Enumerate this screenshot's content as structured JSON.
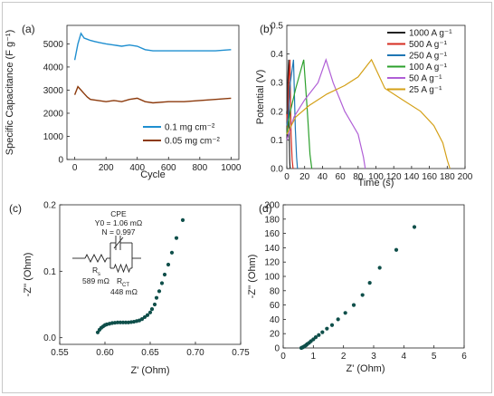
{
  "chart_data": [
    {
      "panel": "(a)",
      "type": "line",
      "xlabel": "Cycle",
      "ylabel": "Specific Capacitance (F g⁻¹)",
      "xlim": [
        -50,
        1050
      ],
      "ylim": [
        0,
        5800
      ],
      "x_ticks": [
        "0",
        "200",
        "400",
        "600",
        "800",
        "1000"
      ],
      "y_ticks": [
        "0",
        "1000",
        "2000",
        "3000",
        "4000",
        "5000"
      ],
      "legend_position": "bottom-right",
      "series": [
        {
          "name": "0.1 mg cm⁻²",
          "color": "#1f8fd0",
          "x": [
            0,
            20,
            40,
            60,
            80,
            100,
            130,
            160,
            200,
            250,
            300,
            350,
            400,
            450,
            500,
            600,
            700,
            800,
            900,
            1000
          ],
          "y": [
            4300,
            5000,
            5450,
            5250,
            5200,
            5150,
            5100,
            5050,
            5000,
            4950,
            4900,
            4950,
            4900,
            4750,
            4700,
            4700,
            4700,
            4700,
            4700,
            4750
          ]
        },
        {
          "name": "0.05 mg cm⁻²",
          "color": "#8c3a0c",
          "x": [
            0,
            20,
            40,
            60,
            80,
            100,
            150,
            200,
            250,
            300,
            350,
            400,
            450,
            500,
            600,
            700,
            800,
            900,
            1000
          ],
          "y": [
            2800,
            3150,
            3000,
            2850,
            2700,
            2600,
            2550,
            2500,
            2550,
            2500,
            2600,
            2650,
            2500,
            2450,
            2500,
            2500,
            2550,
            2600,
            2650
          ]
        }
      ]
    },
    {
      "panel": "(b)",
      "type": "line",
      "xlabel": "Time (s)",
      "ylabel": "Potential (V)",
      "xlim": [
        0,
        200
      ],
      "ylim": [
        0,
        0.5
      ],
      "x_ticks": [
        "0",
        "20",
        "40",
        "60",
        "80",
        "100",
        "120",
        "140",
        "160",
        "180",
        "200"
      ],
      "y_ticks": [
        "0.0",
        "0.1",
        "0.2",
        "0.3",
        "0.4",
        "0.5"
      ],
      "legend_position": "top-right",
      "series": [
        {
          "name": "1000 A g⁻¹",
          "color": "#222222",
          "x": [
            0,
            0.4,
            1,
            2,
            2.8,
            3.4,
            3.8
          ],
          "y": [
            0.2,
            0.1,
            0.3,
            0.38,
            0.1,
            0.02,
            0.0
          ]
        },
        {
          "name": "500 A g⁻¹",
          "color": "#d62d20",
          "x": [
            0,
            0.8,
            2,
            3.6,
            4.8,
            6,
            7
          ],
          "y": [
            0.19,
            0.14,
            0.3,
            0.38,
            0.12,
            0.03,
            0.0
          ]
        },
        {
          "name": "250 A g⁻¹",
          "color": "#1f77b4",
          "x": [
            0,
            1.5,
            4,
            7.5,
            9.5,
            11,
            12
          ],
          "y": [
            0.15,
            0.18,
            0.3,
            0.38,
            0.14,
            0.04,
            0.0
          ]
        },
        {
          "name": "100 A g⁻¹",
          "color": "#2ca02c",
          "x": [
            0,
            4,
            10,
            19,
            23,
            26,
            28
          ],
          "y": [
            0.12,
            0.2,
            0.28,
            0.38,
            0.2,
            0.05,
            0.0
          ]
        },
        {
          "name": "50 A g⁻¹",
          "color": "#b05fd6",
          "x": [
            0,
            8,
            20,
            35,
            44,
            52,
            65,
            80,
            86,
            88
          ],
          "y": [
            0.1,
            0.18,
            0.24,
            0.3,
            0.38,
            0.3,
            0.2,
            0.12,
            0.04,
            0.0
          ]
        },
        {
          "name": "25 A g⁻¹",
          "color": "#d4a017",
          "x": [
            0,
            10,
            25,
            45,
            65,
            80,
            95,
            110,
            130,
            150,
            165,
            175,
            180,
            183
          ],
          "y": [
            0.12,
            0.18,
            0.22,
            0.26,
            0.29,
            0.32,
            0.38,
            0.28,
            0.24,
            0.2,
            0.15,
            0.09,
            0.03,
            0.0
          ]
        }
      ]
    },
    {
      "panel": "(c)",
      "type": "scatter",
      "xlabel": "Z' (Ohm)",
      "ylabel": "-Z'' (Ohm)",
      "xlim": [
        0.55,
        0.75
      ],
      "ylim": [
        -0.01,
        0.2
      ],
      "x_ticks": [
        "0.55",
        "0.60",
        "0.65",
        "0.70",
        "0.75"
      ],
      "y_ticks": [
        "0.0",
        "0.1",
        "0.2"
      ],
      "annotations": [
        "CPE",
        "Y0 = 1.06 mΩ",
        "N = 0.997",
        "R",
        "s",
        "589 mΩ",
        "R",
        "CT",
        "448 mΩ"
      ],
      "marker_color": "#0f4f4a",
      "x": [
        0.592,
        0.594,
        0.596,
        0.598,
        0.6,
        0.602,
        0.605,
        0.608,
        0.611,
        0.614,
        0.617,
        0.62,
        0.623,
        0.626,
        0.629,
        0.632,
        0.635,
        0.638,
        0.641,
        0.644,
        0.647,
        0.65,
        0.652,
        0.655,
        0.657,
        0.66,
        0.663,
        0.666,
        0.67,
        0.674,
        0.679,
        0.686
      ],
      "y": [
        0.008,
        0.012,
        0.015,
        0.017,
        0.019,
        0.02,
        0.021,
        0.022,
        0.0225,
        0.023,
        0.023,
        0.023,
        0.023,
        0.023,
        0.0235,
        0.024,
        0.025,
        0.026,
        0.028,
        0.031,
        0.034,
        0.038,
        0.043,
        0.05,
        0.06,
        0.07,
        0.082,
        0.095,
        0.11,
        0.128,
        0.15,
        0.177
      ]
    },
    {
      "panel": "(d)",
      "type": "scatter",
      "xlabel": "Z' (Ohm)",
      "ylabel": "-Z'' (Ohm)",
      "xlim": [
        0,
        6
      ],
      "ylim": [
        0,
        200
      ],
      "x_ticks": [
        "0",
        "1",
        "2",
        "3",
        "4",
        "5",
        "6"
      ],
      "y_ticks": [
        "0",
        "20",
        "40",
        "60",
        "80",
        "100",
        "120",
        "140",
        "160",
        "180",
        "200"
      ],
      "marker_color": "#0f4f4a",
      "x": [
        0.6,
        0.62,
        0.65,
        0.68,
        0.72,
        0.76,
        0.8,
        0.86,
        0.92,
        1.0,
        1.08,
        1.18,
        1.3,
        1.45,
        1.62,
        1.82,
        2.06,
        2.34,
        2.63,
        2.87,
        3.2,
        3.75,
        4.35
      ],
      "y": [
        0,
        0.5,
        1,
        1.8,
        2.8,
        4,
        5.5,
        7.2,
        9.5,
        12,
        15,
        18,
        22,
        27,
        32,
        40,
        49,
        60,
        74,
        91,
        112,
        137,
        169
      ]
    }
  ]
}
